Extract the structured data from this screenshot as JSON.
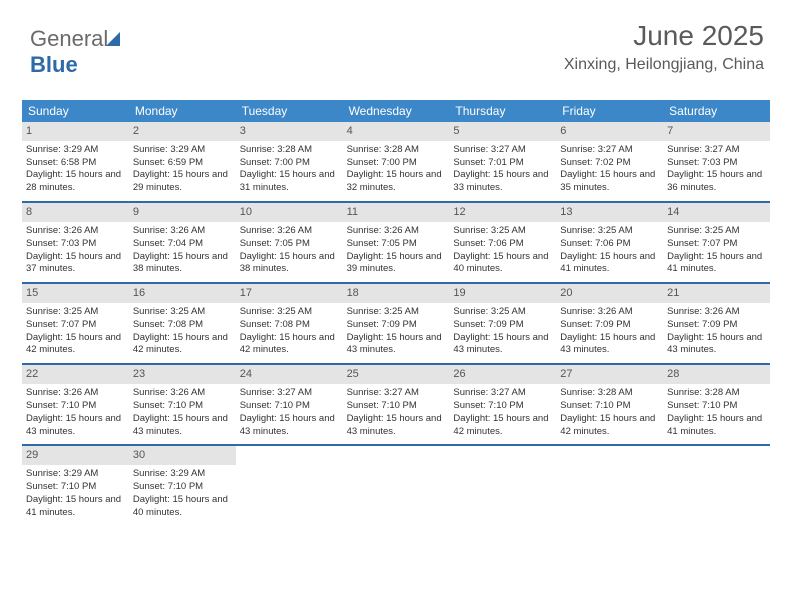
{
  "brand": {
    "part1": "General",
    "part2": "Blue"
  },
  "title": "June 2025",
  "location": "Xinxing, Heilongjiang, China",
  "colors": {
    "header_bg": "#3b87c8",
    "accent": "#2f6aa8",
    "daynum_bg": "#e4e4e4"
  },
  "weekdays": [
    "Sunday",
    "Monday",
    "Tuesday",
    "Wednesday",
    "Thursday",
    "Friday",
    "Saturday"
  ],
  "weeks": [
    [
      {
        "n": "1",
        "sr": "Sunrise: 3:29 AM",
        "ss": "Sunset: 6:58 PM",
        "dl": "Daylight: 15 hours and 28 minutes."
      },
      {
        "n": "2",
        "sr": "Sunrise: 3:29 AM",
        "ss": "Sunset: 6:59 PM",
        "dl": "Daylight: 15 hours and 29 minutes."
      },
      {
        "n": "3",
        "sr": "Sunrise: 3:28 AM",
        "ss": "Sunset: 7:00 PM",
        "dl": "Daylight: 15 hours and 31 minutes."
      },
      {
        "n": "4",
        "sr": "Sunrise: 3:28 AM",
        "ss": "Sunset: 7:00 PM",
        "dl": "Daylight: 15 hours and 32 minutes."
      },
      {
        "n": "5",
        "sr": "Sunrise: 3:27 AM",
        "ss": "Sunset: 7:01 PM",
        "dl": "Daylight: 15 hours and 33 minutes."
      },
      {
        "n": "6",
        "sr": "Sunrise: 3:27 AM",
        "ss": "Sunset: 7:02 PM",
        "dl": "Daylight: 15 hours and 35 minutes."
      },
      {
        "n": "7",
        "sr": "Sunrise: 3:27 AM",
        "ss": "Sunset: 7:03 PM",
        "dl": "Daylight: 15 hours and 36 minutes."
      }
    ],
    [
      {
        "n": "8",
        "sr": "Sunrise: 3:26 AM",
        "ss": "Sunset: 7:03 PM",
        "dl": "Daylight: 15 hours and 37 minutes."
      },
      {
        "n": "9",
        "sr": "Sunrise: 3:26 AM",
        "ss": "Sunset: 7:04 PM",
        "dl": "Daylight: 15 hours and 38 minutes."
      },
      {
        "n": "10",
        "sr": "Sunrise: 3:26 AM",
        "ss": "Sunset: 7:05 PM",
        "dl": "Daylight: 15 hours and 38 minutes."
      },
      {
        "n": "11",
        "sr": "Sunrise: 3:26 AM",
        "ss": "Sunset: 7:05 PM",
        "dl": "Daylight: 15 hours and 39 minutes."
      },
      {
        "n": "12",
        "sr": "Sunrise: 3:25 AM",
        "ss": "Sunset: 7:06 PM",
        "dl": "Daylight: 15 hours and 40 minutes."
      },
      {
        "n": "13",
        "sr": "Sunrise: 3:25 AM",
        "ss": "Sunset: 7:06 PM",
        "dl": "Daylight: 15 hours and 41 minutes."
      },
      {
        "n": "14",
        "sr": "Sunrise: 3:25 AM",
        "ss": "Sunset: 7:07 PM",
        "dl": "Daylight: 15 hours and 41 minutes."
      }
    ],
    [
      {
        "n": "15",
        "sr": "Sunrise: 3:25 AM",
        "ss": "Sunset: 7:07 PM",
        "dl": "Daylight: 15 hours and 42 minutes."
      },
      {
        "n": "16",
        "sr": "Sunrise: 3:25 AM",
        "ss": "Sunset: 7:08 PM",
        "dl": "Daylight: 15 hours and 42 minutes."
      },
      {
        "n": "17",
        "sr": "Sunrise: 3:25 AM",
        "ss": "Sunset: 7:08 PM",
        "dl": "Daylight: 15 hours and 42 minutes."
      },
      {
        "n": "18",
        "sr": "Sunrise: 3:25 AM",
        "ss": "Sunset: 7:09 PM",
        "dl": "Daylight: 15 hours and 43 minutes."
      },
      {
        "n": "19",
        "sr": "Sunrise: 3:25 AM",
        "ss": "Sunset: 7:09 PM",
        "dl": "Daylight: 15 hours and 43 minutes."
      },
      {
        "n": "20",
        "sr": "Sunrise: 3:26 AM",
        "ss": "Sunset: 7:09 PM",
        "dl": "Daylight: 15 hours and 43 minutes."
      },
      {
        "n": "21",
        "sr": "Sunrise: 3:26 AM",
        "ss": "Sunset: 7:09 PM",
        "dl": "Daylight: 15 hours and 43 minutes."
      }
    ],
    [
      {
        "n": "22",
        "sr": "Sunrise: 3:26 AM",
        "ss": "Sunset: 7:10 PM",
        "dl": "Daylight: 15 hours and 43 minutes."
      },
      {
        "n": "23",
        "sr": "Sunrise: 3:26 AM",
        "ss": "Sunset: 7:10 PM",
        "dl": "Daylight: 15 hours and 43 minutes."
      },
      {
        "n": "24",
        "sr": "Sunrise: 3:27 AM",
        "ss": "Sunset: 7:10 PM",
        "dl": "Daylight: 15 hours and 43 minutes."
      },
      {
        "n": "25",
        "sr": "Sunrise: 3:27 AM",
        "ss": "Sunset: 7:10 PM",
        "dl": "Daylight: 15 hours and 43 minutes."
      },
      {
        "n": "26",
        "sr": "Sunrise: 3:27 AM",
        "ss": "Sunset: 7:10 PM",
        "dl": "Daylight: 15 hours and 42 minutes."
      },
      {
        "n": "27",
        "sr": "Sunrise: 3:28 AM",
        "ss": "Sunset: 7:10 PM",
        "dl": "Daylight: 15 hours and 42 minutes."
      },
      {
        "n": "28",
        "sr": "Sunrise: 3:28 AM",
        "ss": "Sunset: 7:10 PM",
        "dl": "Daylight: 15 hours and 41 minutes."
      }
    ],
    [
      {
        "n": "29",
        "sr": "Sunrise: 3:29 AM",
        "ss": "Sunset: 7:10 PM",
        "dl": "Daylight: 15 hours and 41 minutes."
      },
      {
        "n": "30",
        "sr": "Sunrise: 3:29 AM",
        "ss": "Sunset: 7:10 PM",
        "dl": "Daylight: 15 hours and 40 minutes."
      },
      null,
      null,
      null,
      null,
      null
    ]
  ]
}
